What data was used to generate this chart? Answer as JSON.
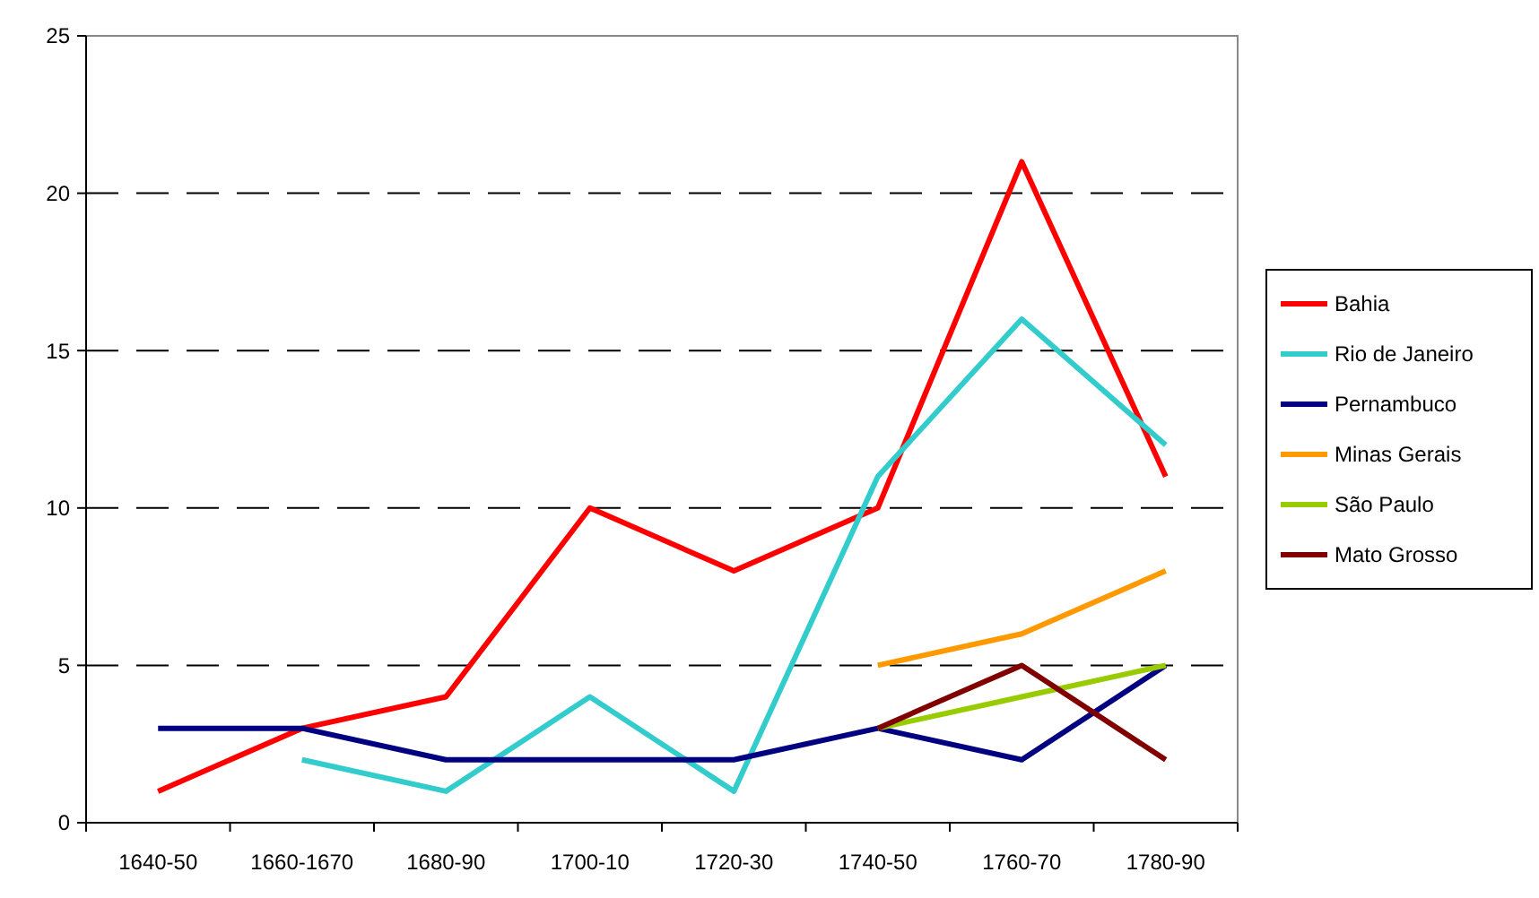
{
  "chart_data": {
    "type": "line",
    "categories": [
      "1640-50",
      "1660-1670",
      "1680-90",
      "1700-10",
      "1720-30",
      "1740-50",
      "1760-70",
      "1780-90"
    ],
    "ylim": [
      0,
      25
    ],
    "yticks": [
      0,
      5,
      10,
      15,
      20,
      25
    ],
    "grid": "y",
    "legend": "right",
    "marker": "none",
    "line_style": "solid",
    "series": [
      {
        "name": "Bahia",
        "color": "#ff0000",
        "values": [
          1,
          3,
          4,
          10,
          8,
          10,
          21,
          11
        ]
      },
      {
        "name": "Rio de Janeiro",
        "color": "#33cccc",
        "values": [
          null,
          2,
          1,
          4,
          1,
          11,
          16,
          12
        ]
      },
      {
        "name": "Pernambuco",
        "color": "#000080",
        "values": [
          3,
          3,
          2,
          2,
          2,
          3,
          2,
          5
        ]
      },
      {
        "name": "Minas Gerais",
        "color": "#ff9900",
        "values": [
          null,
          null,
          null,
          null,
          null,
          5,
          6,
          8
        ]
      },
      {
        "name": "São Paulo",
        "color": "#99cc00",
        "values": [
          null,
          null,
          null,
          null,
          null,
          3,
          4,
          5
        ]
      },
      {
        "name": "Mato Grosso",
        "color": "#800000",
        "values": [
          null,
          null,
          null,
          null,
          null,
          3,
          5,
          2
        ]
      }
    ]
  }
}
